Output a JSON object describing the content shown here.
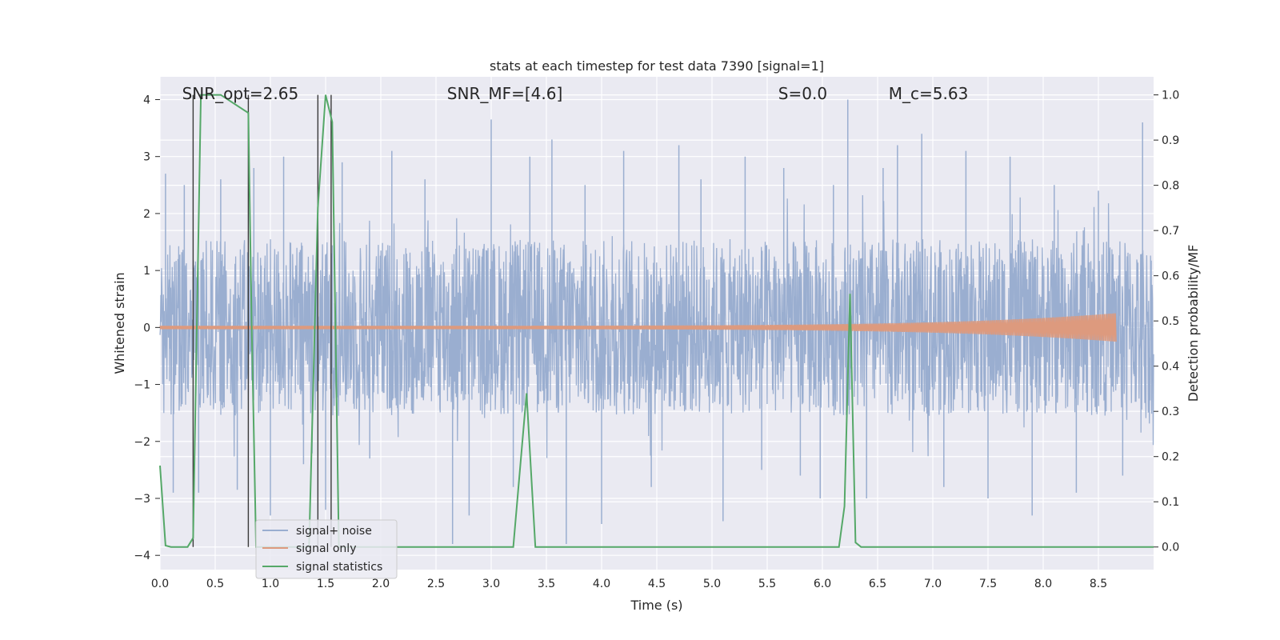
{
  "chart_data": {
    "type": "line",
    "title": "stats at each timestep for test data 7390 [signal=1]",
    "xlabel": "Time (s)",
    "ylabel": "Whitened strain",
    "y2label": "Detection probability/MF",
    "xlim": [
      0.0,
      9.0
    ],
    "ylim": [
      -4.25,
      4.4
    ],
    "y2lim": [
      -0.05,
      1.04
    ],
    "xticks": [
      0.0,
      0.5,
      1.0,
      1.5,
      2.0,
      2.5,
      3.0,
      3.5,
      4.0,
      4.5,
      5.0,
      5.5,
      6.0,
      6.5,
      7.0,
      7.5,
      8.0,
      8.5
    ],
    "yticks": [
      -4,
      -3,
      -2,
      -1,
      0,
      1,
      2,
      3,
      4
    ],
    "y2ticks": [
      0.0,
      0.1,
      0.2,
      0.3,
      0.4,
      0.5,
      0.6,
      0.7,
      0.8,
      0.9,
      1.0
    ],
    "xtick_labels": [
      "0.0",
      "0.5",
      "1.0",
      "1.5",
      "2.0",
      "2.5",
      "3.0",
      "3.5",
      "4.0",
      "4.5",
      "5.0",
      "5.5",
      "6.0",
      "6.5",
      "7.0",
      "7.5",
      "8.0",
      "8.5"
    ],
    "ytick_labels": [
      "−4",
      "−3",
      "−2",
      "−1",
      "0",
      "1",
      "2",
      "3",
      "4"
    ],
    "y2tick_labels": [
      "0.0",
      "0.1",
      "0.2",
      "0.3",
      "0.4",
      "0.5",
      "0.6",
      "0.7",
      "0.8",
      "0.9",
      "1.0"
    ],
    "grid": true,
    "legend_position": "bottom-left",
    "annotations": [
      {
        "id": "snr-opt",
        "text": "SNR_opt=2.65",
        "x": 0.2
      },
      {
        "id": "snr-mf",
        "text": "SNR_MF=[4.6]",
        "x": 2.6
      },
      {
        "id": "s-value",
        "text": "S=0.0",
        "x": 5.6
      },
      {
        "id": "mc-value",
        "text": "M_c=5.63",
        "x": 6.6
      }
    ],
    "vertical_lines_x": [
      0.3,
      0.8,
      1.43,
      1.55
    ],
    "series": [
      {
        "name": "signal+ noise",
        "color": "#9aaed0",
        "axis": "left",
        "kind": "noise",
        "envelope_abs": 1.55,
        "x_range": [
          0.0,
          9.0
        ],
        "spikes": [
          [
            0.05,
            2.7
          ],
          [
            0.12,
            -2.9
          ],
          [
            0.22,
            2.5
          ],
          [
            0.35,
            -2.9
          ],
          [
            0.55,
            2.6
          ],
          [
            0.7,
            -2.85
          ],
          [
            0.85,
            2.8
          ],
          [
            1.0,
            -3.3
          ],
          [
            1.12,
            3.0
          ],
          [
            1.3,
            -2.4
          ],
          [
            1.5,
            -3.2
          ],
          [
            1.65,
            2.9
          ],
          [
            1.9,
            -2.3
          ],
          [
            2.1,
            3.1
          ],
          [
            2.4,
            2.6
          ],
          [
            2.65,
            -3.8
          ],
          [
            2.8,
            -3.3
          ],
          [
            3.0,
            3.65
          ],
          [
            3.2,
            -2.8
          ],
          [
            3.35,
            3.0
          ],
          [
            3.55,
            3.3
          ],
          [
            3.68,
            -3.8
          ],
          [
            3.85,
            2.5
          ],
          [
            4.0,
            -3.45
          ],
          [
            4.2,
            3.1
          ],
          [
            4.45,
            -2.8
          ],
          [
            4.7,
            3.2
          ],
          [
            4.9,
            2.6
          ],
          [
            5.1,
            -3.4
          ],
          [
            5.3,
            3.0
          ],
          [
            5.45,
            -2.5
          ],
          [
            5.65,
            2.8
          ],
          [
            5.8,
            -2.6
          ],
          [
            5.98,
            -3.0
          ],
          [
            6.1,
            2.5
          ],
          [
            6.23,
            4.0
          ],
          [
            6.4,
            -3.0
          ],
          [
            6.55,
            2.8
          ],
          [
            6.68,
            3.2
          ],
          [
            6.9,
            3.4
          ],
          [
            7.1,
            -2.8
          ],
          [
            7.3,
            3.1
          ],
          [
            7.5,
            -3.0
          ],
          [
            7.7,
            3.0
          ],
          [
            7.9,
            -3.3
          ],
          [
            8.1,
            2.5
          ],
          [
            8.3,
            -2.9
          ],
          [
            8.5,
            2.4
          ],
          [
            8.72,
            -2.6
          ],
          [
            8.9,
            3.6
          ]
        ]
      },
      {
        "name": "signal only",
        "color": "#dd9a7e",
        "axis": "left",
        "kind": "chirp",
        "x_range": [
          0.0,
          8.66
        ],
        "amplitude_start": 0.03,
        "amplitude_end": 0.25
      },
      {
        "name": "signal statistics",
        "color": "#55a868",
        "axis": "right",
        "kind": "line",
        "x": [
          0.0,
          0.05,
          0.1,
          0.2,
          0.25,
          0.3,
          0.37,
          0.55,
          0.8,
          0.83,
          0.87,
          1.2,
          1.35,
          1.43,
          1.5,
          1.56,
          1.62,
          3.2,
          3.32,
          3.4,
          6.15,
          6.2,
          6.25,
          6.3,
          6.35,
          6.5,
          6.7,
          9.0
        ],
        "y": [
          0.18,
          0.003,
          0.0,
          0.0,
          0.0,
          0.02,
          1.0,
          1.0,
          0.96,
          0.5,
          0.0,
          0.0,
          0.0,
          0.75,
          1.0,
          0.94,
          0.0,
          0.0,
          0.34,
          0.0,
          0.0,
          0.09,
          0.56,
          0.01,
          0.0,
          0.0,
          0.0,
          0.0
        ]
      }
    ]
  }
}
